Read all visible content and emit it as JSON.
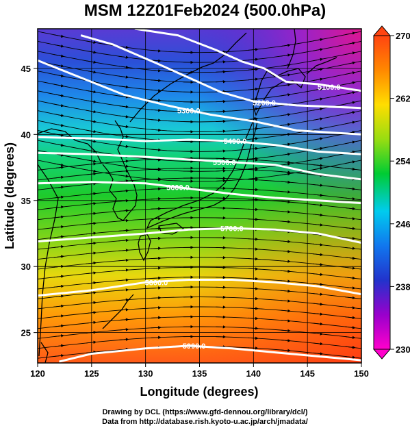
{
  "title": "MSM 12Z01Feb2024 (500.0hPa)",
  "xaxis": {
    "label": "Longitude (degrees)",
    "ticks": [
      "120",
      "125",
      "130",
      "135",
      "140",
      "145",
      "150"
    ]
  },
  "yaxis": {
    "label": "Latitude  (degrees)",
    "ticks": [
      "25",
      "30",
      "35",
      "40",
      "45"
    ]
  },
  "colorbar": {
    "ticks": [
      "270",
      "262",
      "254",
      "246",
      "238",
      "230"
    ],
    "colors": [
      "#ff00cc",
      "#9900cc",
      "#2233cc",
      "#1177ee",
      "#00ccee",
      "#00cc33",
      "#99dd11",
      "#ffdd00",
      "#ff8800",
      "#ff4411"
    ]
  },
  "contours": [
    {
      "label": "5100.0",
      "lat": [
        48.0,
        47.5,
        46.4,
        45.5,
        45.0,
        44.0,
        43.8,
        43.3
      ],
      "lon": [
        129.0,
        133.0,
        136.5,
        139.0,
        141.0,
        143.0,
        146.0,
        150.0
      ]
    },
    {
      "label": "5200.0",
      "lat": [
        47.5,
        46.8,
        45.4,
        44.3,
        43.2,
        42.5,
        42.2,
        42.0
      ],
      "lon": [
        124.0,
        127.0,
        131.0,
        134.0,
        137.0,
        140.0,
        144.0,
        150.0
      ]
    },
    {
      "label": "5300.0",
      "lat": [
        45.6,
        44.3,
        43.0,
        42.2,
        41.5,
        41.0,
        40.3,
        40.0
      ],
      "lon": [
        120.0,
        124.0,
        128.0,
        132.0,
        136.0,
        140.0,
        144.0,
        150.0
      ]
    },
    {
      "label": "5400.0",
      "lat": [
        39.8,
        39.7,
        39.5,
        39.6,
        39.5,
        39.2,
        38.7,
        38.5
      ],
      "lon": [
        120.0,
        125.0,
        130.0,
        134.0,
        138.0,
        142.0,
        146.0,
        150.0
      ]
    },
    {
      "label": "5500.0",
      "lat": [
        38.6,
        38.5,
        38.3,
        38.1,
        37.9,
        37.7,
        37.0,
        36.6
      ],
      "lon": [
        120.0,
        125.0,
        130.0,
        134.0,
        138.0,
        142.0,
        146.0,
        150.0
      ]
    },
    {
      "label": "5600.0",
      "lat": [
        36.3,
        36.4,
        36.3,
        35.9,
        35.5,
        35.2,
        35.0,
        34.8
      ],
      "lon": [
        120.0,
        125.0,
        130.0,
        134.0,
        138.0,
        142.0,
        146.0,
        150.0
      ]
    },
    {
      "label": "5700.0",
      "lat": [
        31.9,
        32.2,
        32.5,
        32.8,
        32.9,
        32.8,
        32.5,
        31.8
      ],
      "lon": [
        120.0,
        125.0,
        130.0,
        134.0,
        138.0,
        142.0,
        146.0,
        150.0
      ]
    },
    {
      "label": "5800.0",
      "lat": [
        27.8,
        28.2,
        28.8,
        29.0,
        29.0,
        28.8,
        28.5,
        27.9
      ],
      "lon": [
        120.0,
        125.0,
        130.0,
        134.0,
        138.0,
        142.0,
        146.0,
        150.0
      ]
    },
    {
      "label": "5900.0",
      "lat": [
        22.8,
        23.4,
        23.8,
        24.0,
        23.8,
        23.5,
        23.2,
        22.9
      ],
      "lon": [
        122.0,
        125.0,
        130.0,
        134.0,
        138.0,
        142.0,
        146.0,
        150.0
      ]
    }
  ],
  "contour_label_positions": [
    {
      "label": "5100.0",
      "lon": 147.0,
      "lat": 43.6
    },
    {
      "label": "5200.0",
      "lon": 141.0,
      "lat": 42.4
    },
    {
      "label": "5300.0",
      "lon": 134.0,
      "lat": 41.8
    },
    {
      "label": "5400.0",
      "lon": 138.3,
      "lat": 39.5
    },
    {
      "label": "5500.0",
      "lon": 137.3,
      "lat": 37.9
    },
    {
      "label": "5600.0",
      "lon": 133.0,
      "lat": 36.0
    },
    {
      "label": "5700.0",
      "lon": 138.0,
      "lat": 32.9
    },
    {
      "label": "5800.0",
      "lon": 131.0,
      "lat": 28.8
    },
    {
      "label": "5900.0",
      "lon": 134.5,
      "lat": 24.0
    }
  ],
  "credits": [
    "Drawing by DCL (https://www.gfd-dennou.org/library/dcl/)",
    "Data from http://database.rish.kyoto-u.ac.jp/arch/jmadata/"
  ]
}
